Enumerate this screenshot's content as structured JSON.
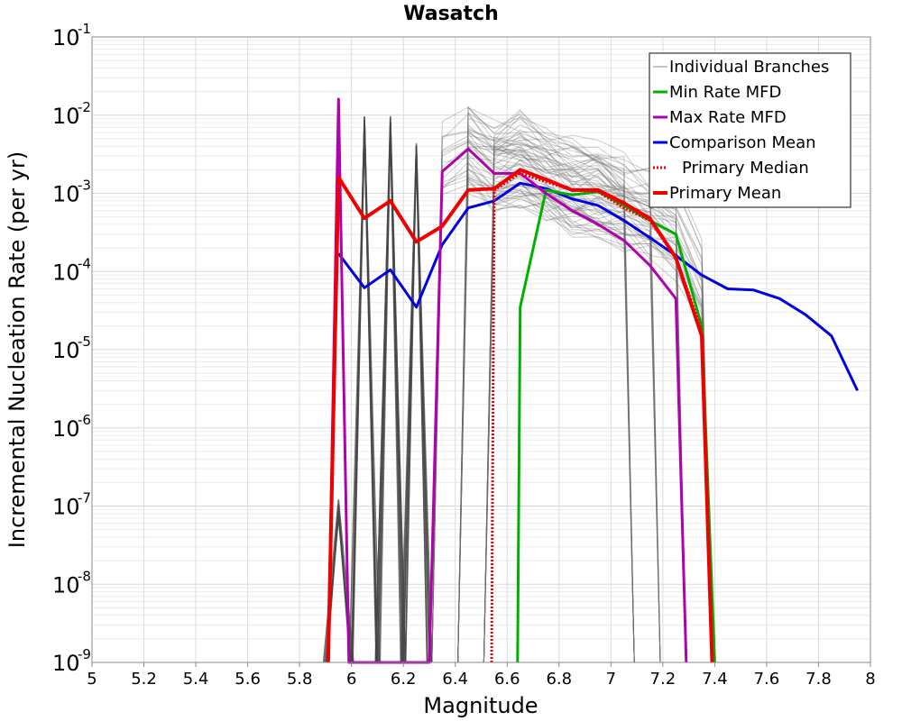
{
  "chart_data": {
    "type": "line",
    "title": "Wasatch",
    "xlabel": "Magnitude",
    "ylabel": "Incremental Nucleation Rate (per yr)",
    "xlim": [
      5,
      8
    ],
    "ylim_log10": [
      -9,
      -1
    ],
    "y_scale": "log",
    "grid": true,
    "legend_position": "top-right",
    "x_ticks": [
      "5",
      "5.2",
      "5.4",
      "5.6",
      "5.8",
      "6",
      "6.2",
      "6.4",
      "6.6",
      "6.8",
      "7",
      "7.2",
      "7.4",
      "7.6",
      "7.8",
      "8"
    ],
    "y_ticks": [
      {
        "base": "10",
        "exp": "-1",
        "log": -1
      },
      {
        "base": "10",
        "exp": "-2",
        "log": -2
      },
      {
        "base": "10",
        "exp": "-3",
        "log": -3
      },
      {
        "base": "10",
        "exp": "-4",
        "log": -4
      },
      {
        "base": "10",
        "exp": "-5",
        "log": -5
      },
      {
        "base": "10",
        "exp": "-6",
        "log": -6
      },
      {
        "base": "10",
        "exp": "-7",
        "log": -7
      },
      {
        "base": "10",
        "exp": "-8",
        "log": -8
      },
      {
        "base": "10",
        "exp": "-9",
        "log": -9
      }
    ],
    "branch_spikes": [
      {
        "x": 5.95,
        "peak_log": -6.9
      },
      {
        "x": 6.05,
        "peak_log": -2.0
      },
      {
        "x": 6.15,
        "peak_log": -2.0
      },
      {
        "x": 6.25,
        "peak_log": -2.3
      }
    ],
    "series": [
      {
        "name": "Comparison Mean",
        "color": "#0000e6",
        "style": "solid",
        "width": 3,
        "x": [
          5.95,
          6.05,
          6.15,
          6.25,
          6.35,
          6.45,
          6.55,
          6.65,
          6.75,
          6.85,
          6.95,
          7.05,
          7.15,
          7.25,
          7.35,
          7.45,
          7.55,
          7.65,
          7.75,
          7.85,
          7.95
        ],
        "y": [
          0.00017,
          6.2e-05,
          0.000105,
          3.5e-05,
          0.00022,
          0.00065,
          0.0008,
          0.00135,
          0.00115,
          0.00085,
          0.0007,
          0.00045,
          0.00027,
          0.00016,
          9e-05,
          6e-05,
          5.8e-05,
          4.5e-05,
          2.8e-05,
          1.5e-05,
          3e-06
        ]
      },
      {
        "name": "Min Rate MFD",
        "color": "#00b000",
        "style": "solid",
        "width": 3,
        "x": [
          6.64,
          6.65,
          6.75,
          6.85,
          6.95,
          7.05,
          7.15,
          7.25,
          7.35,
          7.4
        ],
        "y": [
          1e-09,
          3.5e-05,
          0.0011,
          0.00095,
          0.00105,
          0.0007,
          0.00045,
          0.0003,
          2e-05,
          1e-09
        ]
      },
      {
        "name": "Max Rate MFD",
        "color": "#b000b0",
        "style": "solid",
        "width": 3,
        "x": [
          5.91,
          5.95,
          5.99,
          6.3,
          6.35,
          6.45,
          6.55,
          6.65,
          6.75,
          6.85,
          6.95,
          7.05,
          7.15,
          7.25,
          7.29
        ],
        "y": [
          1e-09,
          0.016,
          1e-09,
          1e-09,
          0.0019,
          0.0037,
          0.0018,
          0.0018,
          0.001,
          0.0006,
          0.0004,
          0.00025,
          0.00012,
          4.5e-05,
          1e-09
        ]
      },
      {
        "name": "Primary Median",
        "color": "#ee0000",
        "style": "dotted",
        "width": 3,
        "x": [
          6.54,
          6.55,
          6.65,
          6.75,
          6.85,
          6.95,
          7.05,
          7.15,
          7.25,
          7.35
        ],
        "y": [
          1e-09,
          0.0011,
          0.0018,
          0.0014,
          0.0011,
          0.00105,
          0.00065,
          0.00045,
          0.00015,
          1.8e-05
        ]
      },
      {
        "name": "Primary Mean",
        "color": "#ee0000",
        "style": "solid",
        "width": 4,
        "x": [
          5.91,
          5.95,
          6.05,
          6.15,
          6.25,
          6.35,
          6.45,
          6.55,
          6.65,
          6.75,
          6.85,
          6.95,
          7.05,
          7.15,
          7.25,
          7.35,
          7.39
        ],
        "y": [
          1e-09,
          0.0016,
          0.00048,
          0.0008,
          0.00024,
          0.00038,
          0.0011,
          0.00115,
          0.002,
          0.0015,
          0.0011,
          0.0011,
          0.00075,
          0.00048,
          0.00015,
          1.5e-05,
          1e-09
        ]
      }
    ],
    "legend": [
      {
        "label": "Individual Branches",
        "color": "#8a8a8a",
        "style": "solid",
        "width": 1
      },
      {
        "label": "Min Rate MFD",
        "color": "#00b000",
        "style": "solid",
        "width": 3
      },
      {
        "label": "Max Rate MFD",
        "color": "#b000b0",
        "style": "solid",
        "width": 3
      },
      {
        "label": "Comparison Mean",
        "color": "#0000e6",
        "style": "solid",
        "width": 3
      },
      {
        "label": "Primary Median",
        "color": "#ee0000",
        "style": "dotted",
        "width": 3
      },
      {
        "label": "Primary Mean",
        "color": "#ee0000",
        "style": "solid",
        "width": 4
      }
    ]
  }
}
